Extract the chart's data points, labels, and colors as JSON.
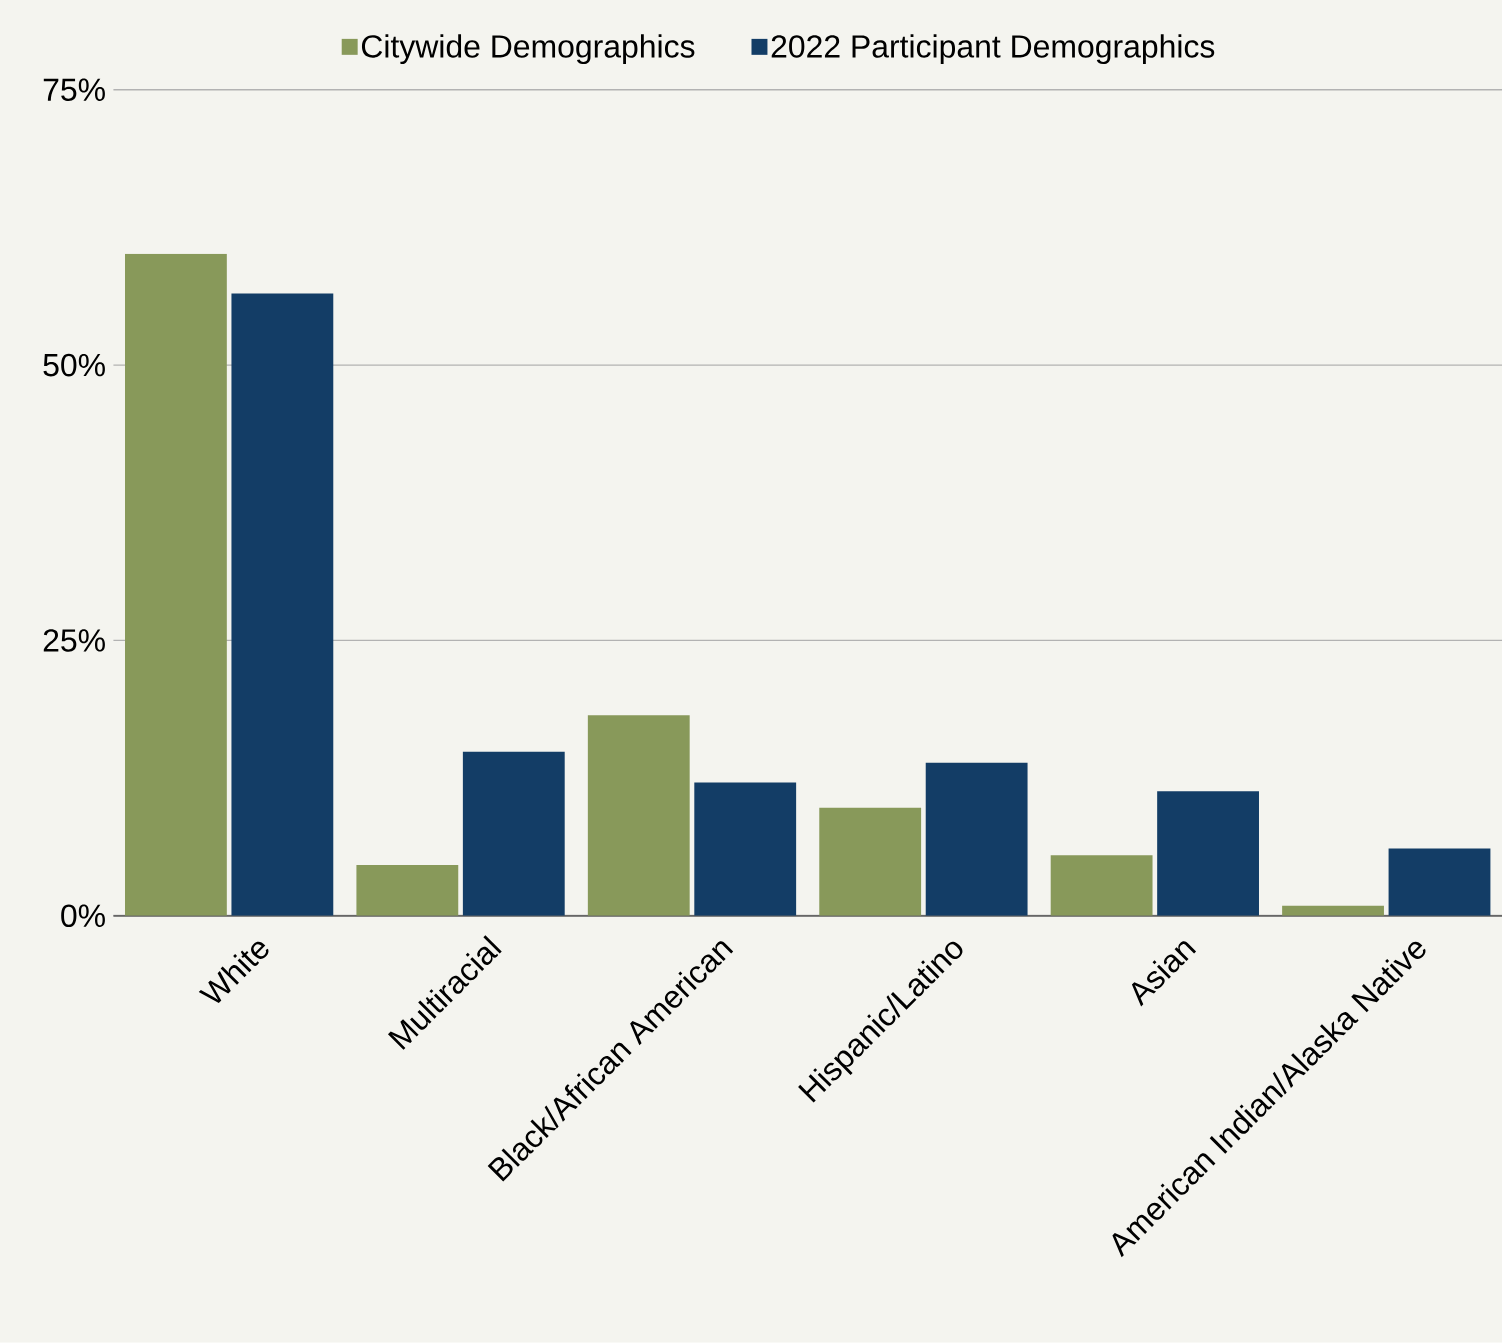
{
  "chart_data": {
    "type": "bar",
    "categories": [
      "White",
      "Multiracial",
      "Black/African American",
      "Hispanic/Latino",
      "Asian",
      "American Indian/Alaska Native"
    ],
    "series": [
      {
        "name": "Citywide Demographics",
        "color": "#88995a",
        "values": [
          60.1,
          4.6,
          18.2,
          9.8,
          5.5,
          0.9
        ]
      },
      {
        "name": "2022 Participant Demographics",
        "color": "#133d66",
        "values": [
          56.5,
          14.9,
          12.1,
          13.9,
          11.3,
          6.1
        ]
      }
    ],
    "ylim": [
      0,
      75
    ],
    "yticks": [
      {
        "value": 0,
        "label": "0%"
      },
      {
        "value": 25,
        "label": "25%"
      },
      {
        "value": 50,
        "label": "50%"
      },
      {
        "value": 75,
        "label": "75%"
      }
    ],
    "grid": "y",
    "legend": "top"
  }
}
